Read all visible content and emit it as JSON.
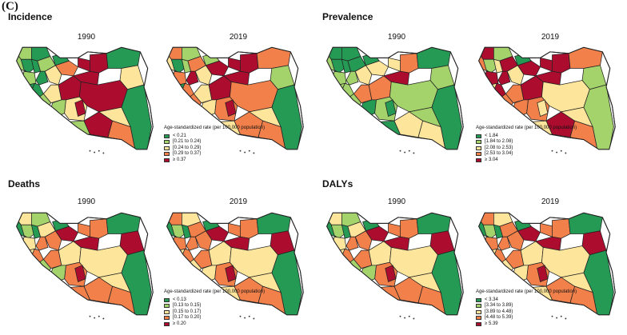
{
  "figure_label": "(C)",
  "colors": {
    "c1": "#249a54",
    "c2": "#a4d36c",
    "c3": "#fde69c",
    "c4": "#f1804a",
    "c5": "#ac0d2f"
  },
  "legend_title": "Age-standardized rate (per 100,000 population)",
  "panels": [
    {
      "title": "Incidence",
      "years": [
        "1990",
        "2019"
      ],
      "legend": [
        "< 0.21",
        "[0.21 to 0.24)",
        "[0.24 to 0.29)",
        "[0.29 to 0.37)",
        "≥ 0.37"
      ],
      "maps": [
        [
          2,
          1,
          2,
          1,
          1,
          2,
          2,
          1,
          1,
          3,
          1,
          2,
          3,
          4,
          5,
          5,
          1,
          3,
          5,
          5,
          5,
          2,
          2,
          3,
          5,
          2,
          5,
          1,
          3,
          4,
          1
        ],
        [
          4,
          2,
          3,
          1,
          2,
          4,
          4,
          5,
          4,
          3,
          1,
          4,
          3,
          5,
          5,
          5,
          4,
          2,
          5,
          5,
          4,
          3,
          4,
          4,
          5,
          3,
          4,
          1,
          3,
          4,
          2
        ]
      ]
    },
    {
      "title": "Prevalence",
      "years": [
        "1990",
        "2019"
      ],
      "legend": [
        "< 1.84",
        "[1.84 to 2.08)",
        "[2.08 to 2.53)",
        "[2.53 to 3.04)",
        "≥ 3.04"
      ],
      "maps": [
        [
          1,
          1,
          2,
          1,
          1,
          1,
          2,
          2,
          2,
          3,
          2,
          2,
          4,
          3,
          3,
          4,
          1,
          2,
          4,
          5,
          2,
          1,
          1,
          2,
          1,
          1,
          3,
          1,
          2,
          3,
          1
        ],
        [
          5,
          2,
          4,
          2,
          3,
          5,
          5,
          5,
          5,
          3,
          3,
          4,
          4,
          5,
          5,
          5,
          4,
          2,
          5,
          5,
          3,
          4,
          3,
          4,
          3,
          3,
          5,
          2,
          3,
          4,
          1
        ]
      ]
    },
    {
      "title": "Deaths",
      "years": [
        "1990",
        "2019"
      ],
      "legend": [
        "< 0.13",
        "[0.13 to 0.15)",
        "[0.15 to 0.17)",
        "[0.17 to 0.20)",
        "≥ 0.20"
      ],
      "maps": [
        [
          3,
          2,
          1,
          2,
          1,
          3,
          3,
          4,
          4,
          4,
          3,
          2,
          4,
          5,
          4,
          4,
          1,
          5,
          3,
          5,
          3,
          2,
          4,
          4,
          5,
          4,
          4,
          1,
          3,
          4,
          1
        ],
        [
          4,
          3,
          1,
          2,
          1,
          4,
          4,
          4,
          4,
          4,
          3,
          3,
          4,
          5,
          4,
          4,
          1,
          5,
          3,
          5,
          3,
          3,
          4,
          4,
          5,
          3,
          4,
          1,
          3,
          4,
          1
        ]
      ]
    },
    {
      "title": "DALYs",
      "years": [
        "1990",
        "2019"
      ],
      "legend": [
        "< 3.34",
        "[3.34 to 3.89)",
        "[3.89 to 4.48)",
        "[4.48 to 5.39)",
        "≥ 5.39"
      ],
      "maps": [
        [
          3,
          2,
          1,
          2,
          1,
          3,
          3,
          4,
          4,
          4,
          3,
          2,
          4,
          5,
          4,
          4,
          1,
          5,
          3,
          5,
          3,
          2,
          4,
          4,
          5,
          4,
          4,
          1,
          3,
          4,
          1
        ],
        [
          4,
          3,
          1,
          2,
          1,
          4,
          4,
          4,
          4,
          4,
          3,
          3,
          4,
          5,
          4,
          4,
          1,
          5,
          3,
          5,
          3,
          3,
          4,
          4,
          5,
          3,
          4,
          1,
          3,
          4,
          1
        ]
      ]
    }
  ]
}
